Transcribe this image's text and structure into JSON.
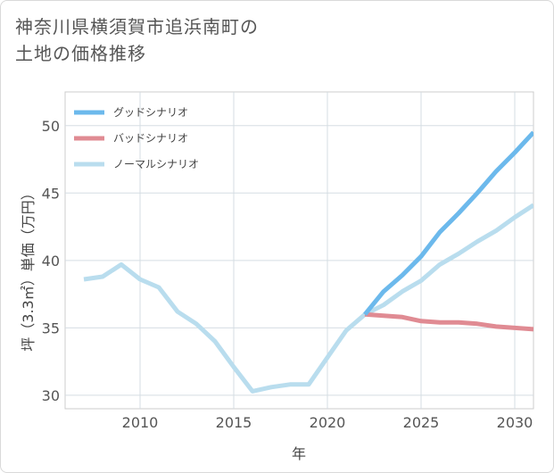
{
  "title": {
    "line1": "神奈川県横須賀市追浜南町の",
    "line2": "土地の価格推移"
  },
  "chart_data": {
    "type": "line",
    "xlabel": "年",
    "ylabel": "坪（3.3㎡）単価（万円）",
    "xlim": [
      2006,
      2031
    ],
    "ylim": [
      29,
      52.5
    ],
    "xticks": [
      2010,
      2015,
      2020,
      2025,
      2030
    ],
    "yticks": [
      30,
      35,
      40,
      45,
      50
    ],
    "legend_position": "top-left",
    "series": [
      {
        "name": "グッドシナリオ",
        "color": "#6cb9ec",
        "x": [
          2022,
          2023,
          2024,
          2025,
          2026,
          2027,
          2028,
          2029,
          2030,
          2031
        ],
        "values": [
          36.0,
          37.7,
          38.9,
          40.3,
          42.1,
          43.5,
          45.0,
          46.6,
          48.0,
          49.5
        ]
      },
      {
        "name": "バッドシナリオ",
        "color": "#e08b93",
        "x": [
          2022,
          2023,
          2024,
          2025,
          2026,
          2027,
          2028,
          2029,
          2030,
          2031
        ],
        "values": [
          36.0,
          35.9,
          35.8,
          35.5,
          35.4,
          35.4,
          35.3,
          35.1,
          35.0,
          34.9
        ]
      },
      {
        "name": "ノーマルシナリオ",
        "color": "#b9ddee",
        "x": [
          2007,
          2008,
          2009,
          2010,
          2011,
          2012,
          2013,
          2014,
          2015,
          2016,
          2017,
          2018,
          2019,
          2020,
          2021,
          2022,
          2023,
          2024,
          2025,
          2026,
          2027,
          2028,
          2029,
          2030,
          2031
        ],
        "values": [
          38.6,
          38.8,
          39.7,
          38.6,
          38.0,
          36.2,
          35.3,
          34.0,
          32.1,
          30.3,
          30.6,
          30.8,
          30.8,
          32.8,
          34.8,
          36.0,
          36.7,
          37.7,
          38.5,
          39.7,
          40.5,
          41.4,
          42.2,
          43.2,
          44.1
        ]
      }
    ]
  }
}
